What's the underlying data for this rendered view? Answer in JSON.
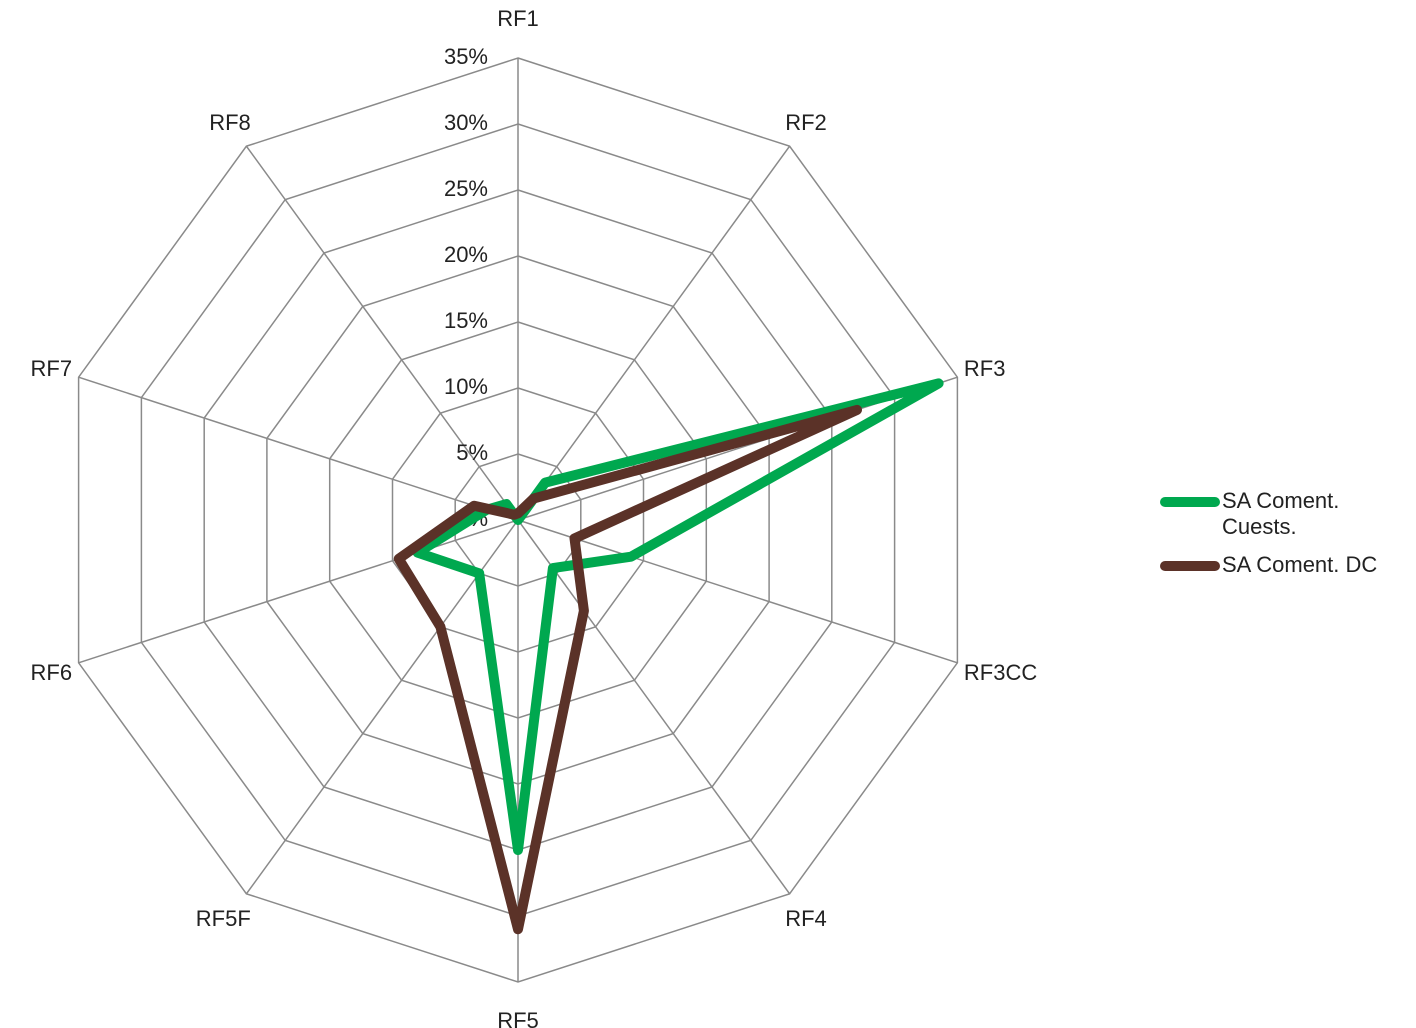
{
  "chart_data": {
    "type": "radar",
    "categories": [
      "RF1",
      "RF2",
      "RF3",
      "RF3CC",
      "RF4",
      "RF5",
      "RF5F",
      "RF6",
      "RF7",
      "RF8"
    ],
    "ticks": [
      "0%",
      "5%",
      "10%",
      "15%",
      "20%",
      "25%",
      "30%",
      "35%"
    ],
    "rmax": 35,
    "series": [
      {
        "name": "SA Coment. Cuests.",
        "color": "#00a84f",
        "values": [
          0,
          3.5,
          33.5,
          9,
          4.5,
          25,
          5,
          8,
          2.5,
          1.5
        ]
      },
      {
        "name": "SA Coment. DC",
        "color": "#5b3228",
        "values": [
          0.5,
          2,
          27,
          4.5,
          8.5,
          31,
          10,
          9.5,
          3.5,
          0.5
        ]
      }
    ],
    "legend_position": "right",
    "grid": true
  }
}
